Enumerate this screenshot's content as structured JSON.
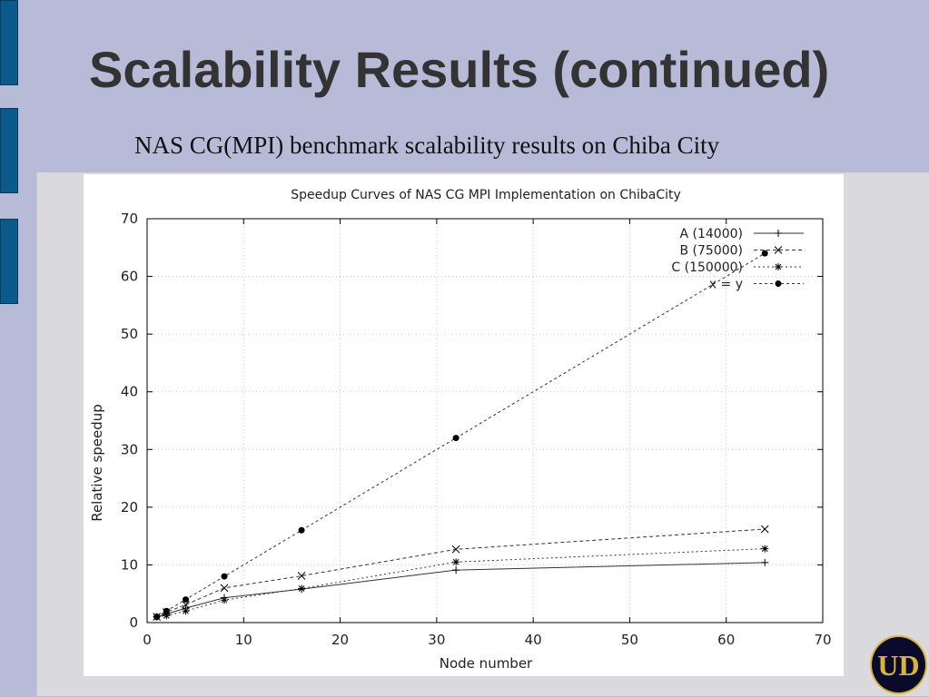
{
  "slide": {
    "title": "Scalability Results (continued)",
    "subtitle": "NAS CG(MPI) benchmark scalability results on Chiba City",
    "logo_text": "UD"
  },
  "colors": {
    "background": "#b7bbd7",
    "side_bar": "#0a5a8c",
    "title": "#333333",
    "logo_bg": "#0a0a2a",
    "logo_gold": "#d8b43a"
  },
  "chart_data": {
    "type": "line",
    "title": "Speedup Curves of NAS CG MPI Implementation on ChibaCity",
    "xlabel": "Node number",
    "ylabel": "Relative speedup",
    "xlim": [
      0,
      70
    ],
    "ylim": [
      0,
      70
    ],
    "xticks": [
      0,
      10,
      20,
      30,
      40,
      50,
      60,
      70
    ],
    "yticks": [
      0,
      10,
      20,
      30,
      40,
      50,
      60,
      70
    ],
    "grid": true,
    "legend_position": "top-right",
    "series": [
      {
        "name": "A (14000)",
        "marker": "plus",
        "dash": "",
        "x": [
          1,
          2,
          4,
          8,
          16,
          32,
          64
        ],
        "y": [
          1,
          1.5,
          2.5,
          4.3,
          5.8,
          9.1,
          10.4
        ]
      },
      {
        "name": "B (75000)",
        "marker": "cross",
        "dash": "4,3",
        "x": [
          1,
          2,
          4,
          8,
          16,
          32,
          64
        ],
        "y": [
          1,
          1.8,
          3.1,
          6.0,
          8.1,
          12.7,
          16.2
        ]
      },
      {
        "name": "C (150000)",
        "marker": "star",
        "dash": "2,3",
        "x": [
          1,
          2,
          4,
          8,
          16,
          32,
          64
        ],
        "y": [
          1,
          1.2,
          2.0,
          3.9,
          5.9,
          10.5,
          12.8
        ]
      },
      {
        "name": "x = y",
        "marker": "dot",
        "dash": "3,3",
        "x": [
          1,
          2,
          4,
          8,
          16,
          32,
          64
        ],
        "y": [
          1,
          2,
          4,
          8,
          16,
          32,
          64
        ]
      }
    ]
  }
}
